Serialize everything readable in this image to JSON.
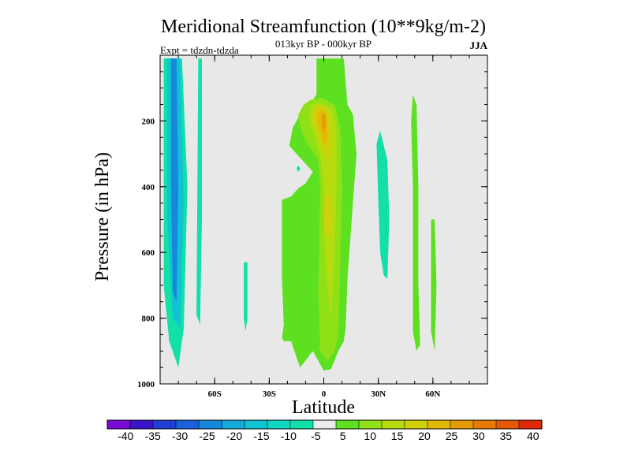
{
  "chart_data": {
    "type": "heatmap",
    "title": "Meridional Streamfunction (10**9kg/m-2)",
    "subtitle": "013kyr BP - 000kyr BP",
    "experiment": "Expt = tdzdn-tdzda",
    "season": "JJA",
    "xlabel": "Latitude",
    "ylabel": "Pressure (in hPa)",
    "xlim": [
      -90,
      90
    ],
    "ylim": [
      0,
      1000
    ],
    "y_inverted": true,
    "x_ticks": [
      {
        "value": -60,
        "label": "60S"
      },
      {
        "value": -30,
        "label": "30S"
      },
      {
        "value": 0,
        "label": "0"
      },
      {
        "value": 30,
        "label": "30N"
      },
      {
        "value": 60,
        "label": "60N"
      }
    ],
    "y_ticks": [
      {
        "value": 200,
        "label": "200"
      },
      {
        "value": 400,
        "label": "400"
      },
      {
        "value": 600,
        "label": "600"
      },
      {
        "value": 800,
        "label": "800"
      },
      {
        "value": 1000,
        "label": "1000"
      }
    ],
    "background_color": "#e8e8e8",
    "colorbar": {
      "colors": [
        "#7a0ad8",
        "#3a14c8",
        "#1e3ed4",
        "#1a62dc",
        "#1688dc",
        "#14aadc",
        "#10c2d2",
        "#10d6c4",
        "#12e0a8",
        "#ececec",
        "#5ce020",
        "#90e018",
        "#b6dc10",
        "#d2d008",
        "#e2b806",
        "#e69a06",
        "#e67a06",
        "#e45806",
        "#e02808"
      ],
      "labels": [
        "-40",
        "-35",
        "-30",
        "-25",
        "-20",
        "-15",
        "-10",
        "-5",
        "5",
        "10",
        "15",
        "20",
        "25",
        "30",
        "35",
        "40"
      ]
    },
    "contour_regions": [
      {
        "level": -10,
        "color": "#12e0a8",
        "polygon": [
          [
            -88,
            10
          ],
          [
            -78,
            10
          ],
          [
            -75,
            400
          ],
          [
            -77,
            830
          ],
          [
            -80,
            950
          ],
          [
            -85,
            870
          ],
          [
            -88,
            700
          ]
        ]
      },
      {
        "level": -10,
        "color": "#12e0a8",
        "polygon": [
          [
            -69,
            10
          ],
          [
            -67,
            10
          ],
          [
            -67,
            500
          ],
          [
            -68,
            820
          ],
          [
            -70,
            790
          ]
        ]
      },
      {
        "level": -10,
        "color": "#12e0a8",
        "polygon": [
          [
            -44,
            630
          ],
          [
            -42,
            630
          ],
          [
            -42,
            800
          ],
          [
            -43,
            840
          ],
          [
            -44,
            800
          ]
        ]
      },
      {
        "level": -10,
        "color": "#12e0a8",
        "polygon": [
          [
            -15,
            345
          ],
          [
            -14,
            335
          ],
          [
            -13,
            345
          ],
          [
            -14,
            355
          ]
        ]
      },
      {
        "level": -10,
        "color": "#12e0a8",
        "polygon": [
          [
            29,
            270
          ],
          [
            31,
            230
          ],
          [
            35,
            320
          ],
          [
            36,
            500
          ],
          [
            35,
            680
          ],
          [
            33,
            670
          ],
          [
            31,
            600
          ],
          [
            30,
            450
          ]
        ]
      },
      {
        "level": -15,
        "color": "#10c2d2",
        "polygon": [
          [
            -86,
            10
          ],
          [
            -79,
            10
          ],
          [
            -77,
            450
          ],
          [
            -79,
            830
          ],
          [
            -83,
            800
          ],
          [
            -86,
            500
          ]
        ]
      },
      {
        "level": -20,
        "color": "#1688dc",
        "polygon": [
          [
            -84,
            10
          ],
          [
            -81,
            10
          ],
          [
            -80,
            400
          ],
          [
            -81,
            750
          ],
          [
            -83,
            720
          ],
          [
            -84,
            400
          ]
        ]
      },
      {
        "level": 5,
        "color": "#5ce020",
        "polygon": [
          [
            -10,
            10
          ],
          [
            -4,
            10
          ],
          [
            -4,
            120
          ],
          [
            -8,
            150
          ],
          [
            -12,
            170
          ],
          [
            -17,
            220
          ],
          [
            -19,
            275
          ],
          [
            -15,
            300
          ],
          [
            -10,
            330
          ],
          [
            -6,
            355
          ],
          [
            -10,
            390
          ],
          [
            -14,
            405
          ],
          [
            -18,
            430
          ],
          [
            -23,
            440
          ],
          [
            -23,
            680
          ],
          [
            -22,
            820
          ],
          [
            -23,
            860
          ],
          [
            -22,
            870
          ],
          [
            -18,
            870
          ],
          [
            -13,
            950
          ],
          [
            -6,
            900
          ],
          [
            0,
            960
          ],
          [
            4,
            955
          ],
          [
            8,
            900
          ],
          [
            11,
            870
          ],
          [
            12,
            830
          ],
          [
            13,
            680
          ],
          [
            16,
            450
          ],
          [
            18,
            300
          ],
          [
            16,
            180
          ],
          [
            13,
            150
          ],
          [
            11,
            10
          ]
        ]
      },
      {
        "level": 5,
        "color": "#5ce020",
        "polygon": [
          [
            49,
            120
          ],
          [
            51,
            150
          ],
          [
            52,
            400
          ],
          [
            52,
            700
          ],
          [
            53,
            880
          ],
          [
            51,
            900
          ],
          [
            49,
            840
          ],
          [
            49,
            400
          ],
          [
            48,
            200
          ]
        ]
      },
      {
        "level": 5,
        "color": "#5ce020",
        "polygon": [
          [
            59,
            500
          ],
          [
            61,
            500
          ],
          [
            62,
            700
          ],
          [
            61,
            900
          ],
          [
            59,
            840
          ],
          [
            59,
            700
          ]
        ]
      },
      {
        "level": 10,
        "color": "#90e018",
        "polygon": [
          [
            -11,
            150
          ],
          [
            -7,
            135
          ],
          [
            -1,
            130
          ],
          [
            6,
            150
          ],
          [
            9,
            220
          ],
          [
            10,
            400
          ],
          [
            9,
            650
          ],
          [
            8,
            850
          ],
          [
            6,
            900
          ],
          [
            2,
            930
          ],
          [
            -2,
            900
          ],
          [
            -3,
            720
          ],
          [
            -2,
            400
          ],
          [
            -3,
            320
          ],
          [
            -9,
            270
          ],
          [
            -13,
            220
          ],
          [
            -14,
            180
          ]
        ]
      },
      {
        "level": 15,
        "color": "#b6dc10",
        "polygon": [
          [
            -7,
            150
          ],
          [
            -2,
            145
          ],
          [
            4,
            160
          ],
          [
            7,
            220
          ],
          [
            7,
            400
          ],
          [
            6,
            600
          ],
          [
            4,
            800
          ],
          [
            2,
            700
          ],
          [
            0,
            520
          ],
          [
            0,
            400
          ],
          [
            -2,
            300
          ],
          [
            -5,
            250
          ],
          [
            -8,
            200
          ]
        ]
      },
      {
        "level": 20,
        "color": "#d2d008",
        "polygon": [
          [
            -5,
            160
          ],
          [
            0,
            155
          ],
          [
            3,
            180
          ],
          [
            4,
            250
          ],
          [
            3,
            320
          ],
          [
            0,
            290
          ],
          [
            -3,
            240
          ],
          [
            -6,
            190
          ]
        ]
      },
      {
        "level": 20,
        "color": "#d2d008",
        "polygon": [
          [
            1,
            430
          ],
          [
            3,
            420
          ],
          [
            4,
            500
          ],
          [
            3,
            560
          ],
          [
            1,
            540
          ],
          [
            0,
            480
          ]
        ]
      },
      {
        "level": 25,
        "color": "#e2b806",
        "polygon": [
          [
            -3,
            170
          ],
          [
            0,
            165
          ],
          [
            2,
            200
          ],
          [
            2,
            260
          ],
          [
            0,
            270
          ],
          [
            -2,
            230
          ],
          [
            -4,
            190
          ]
        ]
      },
      {
        "level": 30,
        "color": "#e69a06",
        "polygon": [
          [
            -1,
            180
          ],
          [
            1,
            180
          ],
          [
            1,
            220
          ],
          [
            0,
            235
          ],
          [
            -1,
            210
          ]
        ]
      }
    ]
  }
}
